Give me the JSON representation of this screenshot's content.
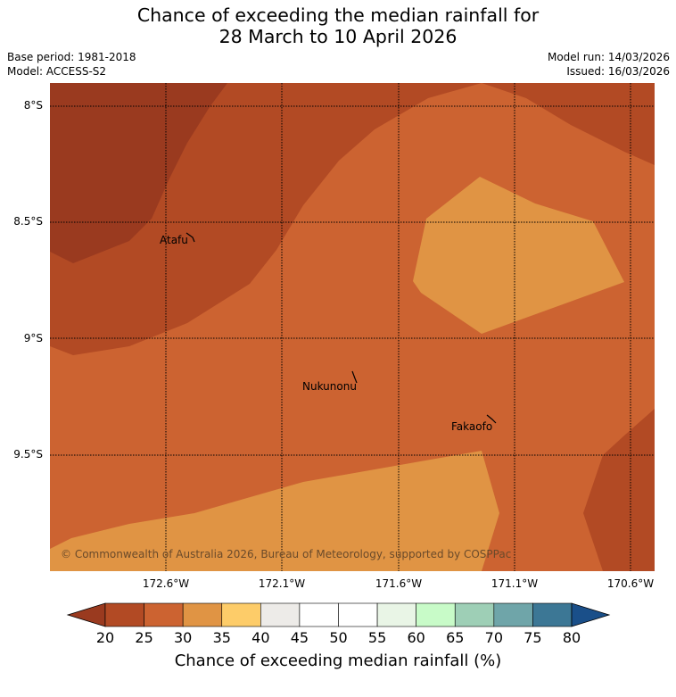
{
  "title_line1": "Chance of exceeding the median rainfall for",
  "title_line2": "28 March to 10 April 2026",
  "base_period": "Base period: 1981-2018",
  "model": "Model: ACCESS-S2",
  "model_run": "Model run: 14/03/2026",
  "issued": "Issued: 16/03/2026",
  "lat_labels": [
    "8°S",
    "8.5°S",
    "9°S",
    "9.5°S"
  ],
  "lon_labels": [
    "172.6°W",
    "172.1°W",
    "171.6°W",
    "171.1°W",
    "170.6°W"
  ],
  "places": [
    "Atafu",
    "Nukunonu",
    "Fakaofo"
  ],
  "copyright": "© Commonwealth of Australia 2026, Bureau of Meteorology, supported by COSPPac",
  "colorbar_ticks": [
    "20",
    "25",
    "30",
    "35",
    "40",
    "45",
    "50",
    "55",
    "60",
    "65",
    "70",
    "75",
    "80"
  ],
  "colorbar_label": "Chance of exceeding median rainfall (%)",
  "colorbar_colors": [
    "#9a3a1f",
    "#b24a24",
    "#cc6331",
    "#e09444",
    "#fdcc69",
    "#edebe8",
    "#ffffff",
    "#ffffff",
    "#e9f5e6",
    "#c8fbc8",
    "#9ecfb6",
    "#6fa5a9",
    "#3c7795",
    "#1a4f89"
  ]
}
